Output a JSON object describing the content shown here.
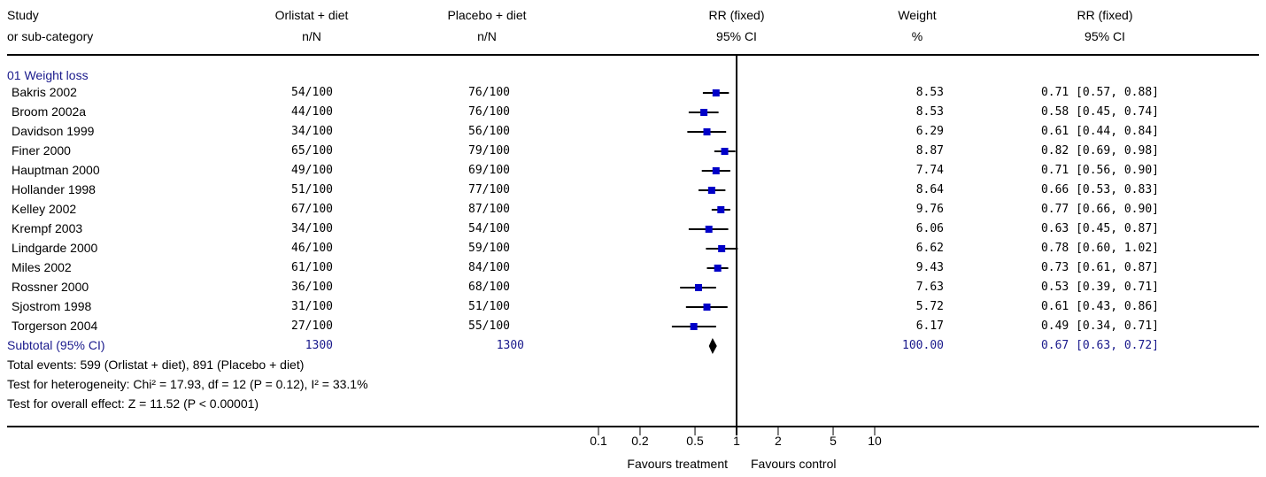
{
  "header": {
    "study": "Study",
    "subcat": "or sub-category",
    "treat": "Orlistat + diet",
    "treat_n": "n/N",
    "ctrl": "Placebo + diet",
    "ctrl_n": "n/N",
    "rr": "RR (fixed)",
    "rr_ci": "95% CI",
    "weight": "Weight",
    "weight_unit": "%",
    "rr2": "RR (fixed)",
    "rr2_ci": "95% CI"
  },
  "group_label": "01 Weight loss",
  "chart_data": {
    "type": "forest",
    "scale": "log",
    "xlim": [
      0.1,
      10
    ],
    "ticks": [
      "0.1",
      "0.2",
      "0.5",
      "1",
      "2",
      "5",
      "10"
    ],
    "xlabel_left": "Favours treatment",
    "xlabel_right": "Favours control",
    "studies": [
      {
        "name": "Bakris 2002",
        "treat": "54/100",
        "ctrl": "76/100",
        "weight": "8.53",
        "rr": 0.71,
        "lo": 0.57,
        "hi": 0.88,
        "ci_text": "0.71 [0.57, 0.88]"
      },
      {
        "name": "Broom 2002a",
        "treat": "44/100",
        "ctrl": "76/100",
        "weight": "8.53",
        "rr": 0.58,
        "lo": 0.45,
        "hi": 0.74,
        "ci_text": "0.58 [0.45, 0.74]"
      },
      {
        "name": "Davidson 1999",
        "treat": "34/100",
        "ctrl": "56/100",
        "weight": "6.29",
        "rr": 0.61,
        "lo": 0.44,
        "hi": 0.84,
        "ci_text": "0.61 [0.44, 0.84]"
      },
      {
        "name": "Finer 2000",
        "treat": "65/100",
        "ctrl": "79/100",
        "weight": "8.87",
        "rr": 0.82,
        "lo": 0.69,
        "hi": 0.98,
        "ci_text": "0.82 [0.69, 0.98]"
      },
      {
        "name": "Hauptman 2000",
        "treat": "49/100",
        "ctrl": "69/100",
        "weight": "7.74",
        "rr": 0.71,
        "lo": 0.56,
        "hi": 0.9,
        "ci_text": "0.71 [0.56, 0.90]"
      },
      {
        "name": "Hollander 1998",
        "treat": "51/100",
        "ctrl": "77/100",
        "weight": "8.64",
        "rr": 0.66,
        "lo": 0.53,
        "hi": 0.83,
        "ci_text": "0.66 [0.53, 0.83]"
      },
      {
        "name": "Kelley 2002",
        "treat": "67/100",
        "ctrl": "87/100",
        "weight": "9.76",
        "rr": 0.77,
        "lo": 0.66,
        "hi": 0.9,
        "ci_text": "0.77 [0.66, 0.90]"
      },
      {
        "name": "Krempf 2003",
        "treat": "34/100",
        "ctrl": "54/100",
        "weight": "6.06",
        "rr": 0.63,
        "lo": 0.45,
        "hi": 0.87,
        "ci_text": "0.63 [0.45, 0.87]"
      },
      {
        "name": "Lindgarde 2000",
        "treat": "46/100",
        "ctrl": "59/100",
        "weight": "6.62",
        "rr": 0.78,
        "lo": 0.6,
        "hi": 1.02,
        "ci_text": "0.78 [0.60, 1.02]"
      },
      {
        "name": "Miles 2002",
        "treat": "61/100",
        "ctrl": "84/100",
        "weight": "9.43",
        "rr": 0.73,
        "lo": 0.61,
        "hi": 0.87,
        "ci_text": "0.73 [0.61, 0.87]"
      },
      {
        "name": "Rossner 2000",
        "treat": "36/100",
        "ctrl": "68/100",
        "weight": "7.63",
        "rr": 0.53,
        "lo": 0.39,
        "hi": 0.71,
        "ci_text": "0.53 [0.39, 0.71]"
      },
      {
        "name": "Sjostrom 1998",
        "treat": "31/100",
        "ctrl": "51/100",
        "weight": "5.72",
        "rr": 0.61,
        "lo": 0.43,
        "hi": 0.86,
        "ci_text": "0.61 [0.43, 0.86]"
      },
      {
        "name": "Torgerson 2004",
        "treat": "27/100",
        "ctrl": "55/100",
        "weight": "6.17",
        "rr": 0.49,
        "lo": 0.34,
        "hi": 0.71,
        "ci_text": "0.49 [0.34, 0.71]"
      }
    ],
    "subtotal": {
      "name": "Subtotal (95% CI)",
      "treat": "1300",
      "ctrl": "1300",
      "weight": "100.00",
      "rr": 0.67,
      "lo": 0.63,
      "hi": 0.72,
      "ci_text": "0.67 [0.63, 0.72]"
    },
    "notes": [
      "Total events: 599 (Orlistat + diet), 891 (Placebo + diet)",
      "Test for heterogeneity: Chi² = 17.93, df = 12 (P = 0.12), I² = 33.1%",
      "Test for overall effect: Z = 11.52 (P < 0.00001)"
    ]
  },
  "colors": {
    "marker": "#0000c8",
    "subtotal_text": "#1a1a8c"
  }
}
